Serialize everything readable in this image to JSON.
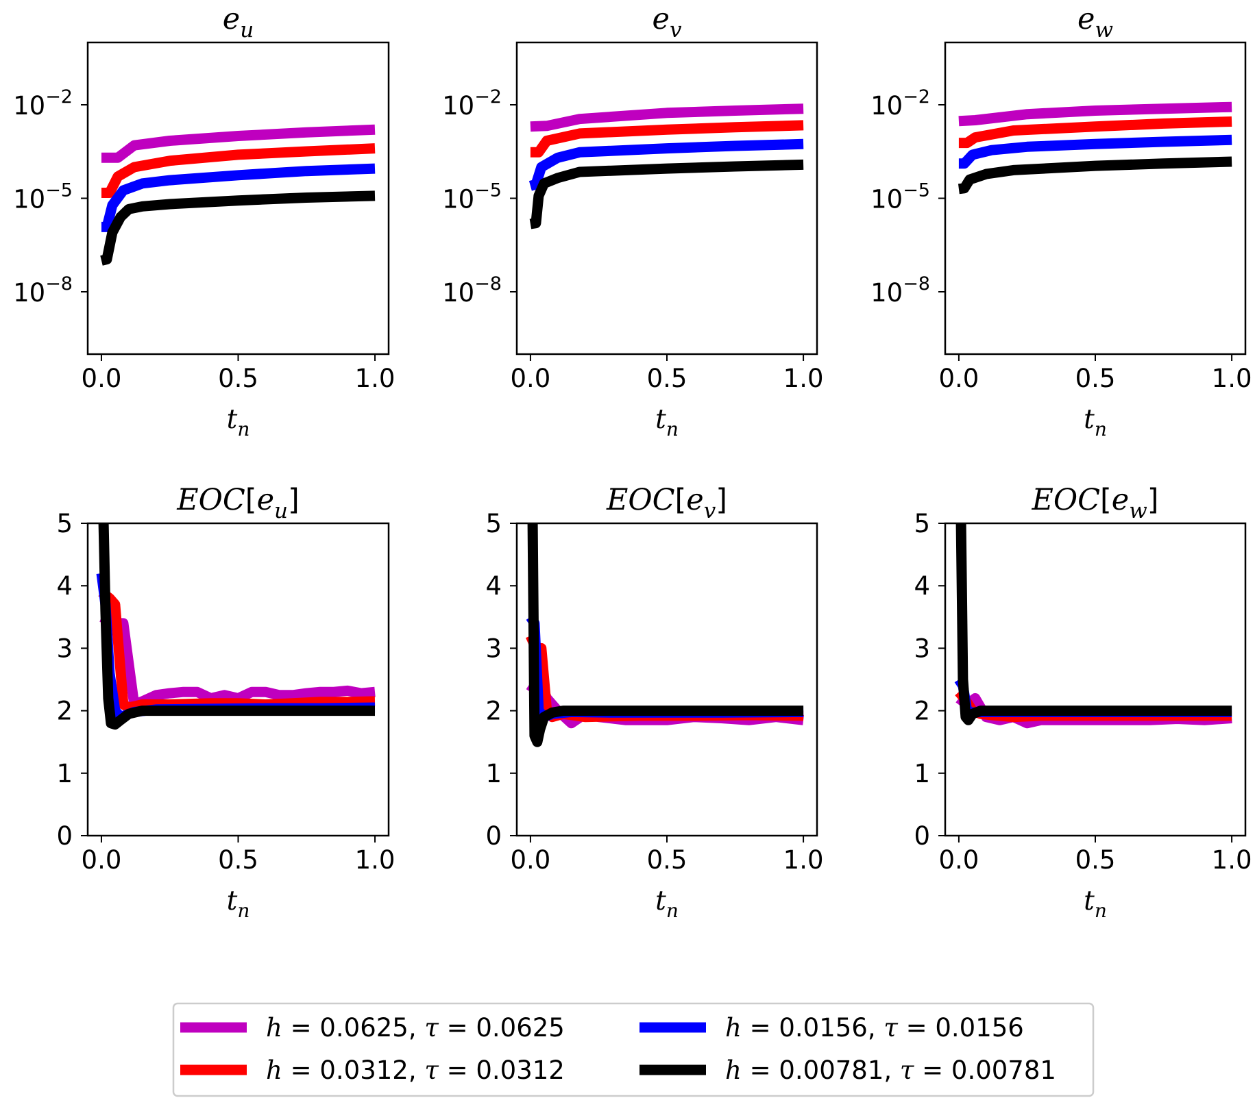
{
  "legend": {
    "entries": [
      {
        "label": "h = 0.0625, τ = 0.0625",
        "color": "#bf00bf"
      },
      {
        "label": "h = 0.0312, τ = 0.0312",
        "color": "#ff0000"
      },
      {
        "label": "h = 0.0156, τ = 0.0156",
        "color": "#0000ff"
      },
      {
        "label": "h = 0.00781, τ = 0.00781",
        "color": "#000000"
      }
    ]
  },
  "chart_data": [
    {
      "type": "line",
      "title": "e_u",
      "xlabel": "t_n",
      "ylabel": "",
      "yscale": "log",
      "xlim": [
        -0.05,
        1.05
      ],
      "ylim": [
        1e-10,
        1.0
      ],
      "xticks": [
        0.0,
        0.5,
        1.0
      ],
      "xtick_labels": [
        "0.0",
        "0.5",
        "1.0"
      ],
      "yticks": [
        1e-08,
        1e-05,
        0.01
      ],
      "ytick_labels": [
        "10",
        "10",
        "10"
      ],
      "ytick_exponents": [
        "−8",
        "−5",
        "−2"
      ],
      "series": [
        {
          "name": "h = 0.0625, τ = 0.0625",
          "x": [
            0,
            0.06,
            0.12,
            0.25,
            0.5,
            0.75,
            1.0
          ],
          "y": [
            0.0002,
            0.0002,
            0.0005,
            0.0007,
            0.001,
            0.0013,
            0.0016
          ]
        },
        {
          "name": "h = 0.0312, τ = 0.0312",
          "x": [
            0,
            0.03,
            0.06,
            0.12,
            0.25,
            0.5,
            0.75,
            1.0
          ],
          "y": [
            1.5e-05,
            1.5e-05,
            5e-05,
            0.0001,
            0.00016,
            0.00025,
            0.00032,
            0.0004
          ]
        },
        {
          "name": "h = 0.0156, τ = 0.0156",
          "x": [
            0,
            0.02,
            0.04,
            0.08,
            0.15,
            0.25,
            0.5,
            0.75,
            1.0
          ],
          "y": [
            1.2e-06,
            1.2e-06,
            6e-06,
            1.8e-05,
            3e-05,
            3.8e-05,
            5.5e-05,
            7.5e-05,
            9e-05
          ]
        },
        {
          "name": "h = 0.00781, τ = 0.00781",
          "x": [
            0,
            0.02,
            0.04,
            0.07,
            0.1,
            0.15,
            0.25,
            0.5,
            0.75,
            1.0
          ],
          "y": [
            1e-07,
            1.1e-07,
            8e-07,
            2.5e-06,
            4.5e-06,
            5.5e-06,
            6.5e-06,
            8.5e-06,
            1.05e-05,
            1.2e-05
          ]
        }
      ]
    },
    {
      "type": "line",
      "title": "e_v",
      "xlabel": "t_n",
      "ylabel": "",
      "yscale": "log",
      "xlim": [
        -0.05,
        1.05
      ],
      "ylim": [
        1e-10,
        1.0
      ],
      "xticks": [
        0.0,
        0.5,
        1.0
      ],
      "xtick_labels": [
        "0.0",
        "0.5",
        "1.0"
      ],
      "yticks": [
        1e-08,
        1e-05,
        0.01
      ],
      "ytick_labels": [
        "10",
        "10",
        "10"
      ],
      "ytick_exponents": [
        "−8",
        "−5",
        "−2"
      ],
      "series": [
        {
          "name": "h = 0.0625, τ = 0.0625",
          "x": [
            0,
            0.06,
            0.18,
            0.5,
            0.75,
            1.0
          ],
          "y": [
            0.002,
            0.0021,
            0.0035,
            0.0055,
            0.0065,
            0.0075
          ]
        },
        {
          "name": "h = 0.0312, τ = 0.0312",
          "x": [
            0,
            0.03,
            0.06,
            0.18,
            0.5,
            0.75,
            1.0
          ],
          "y": [
            0.0003,
            0.0003,
            0.0007,
            0.0012,
            0.0016,
            0.0019,
            0.0022
          ]
        },
        {
          "name": "h = 0.0156, τ = 0.0156",
          "x": [
            0,
            0.02,
            0.04,
            0.1,
            0.18,
            0.5,
            0.75,
            1.0
          ],
          "y": [
            2.5e-05,
            2.8e-05,
            0.0001,
            0.0002,
            0.0003,
            0.0004,
            0.00048,
            0.00055
          ]
        },
        {
          "name": "h = 0.00781, τ = 0.00781",
          "x": [
            0,
            0.02,
            0.03,
            0.05,
            0.1,
            0.18,
            0.5,
            0.75,
            1.0
          ],
          "y": [
            1.5e-06,
            1.6e-06,
            1.2e-05,
            3e-05,
            4.5e-05,
            7e-05,
            9e-05,
            0.000105,
            0.00012
          ]
        }
      ]
    },
    {
      "type": "line",
      "title": "e_w",
      "xlabel": "t_n",
      "ylabel": "",
      "yscale": "log",
      "xlim": [
        -0.05,
        1.05
      ],
      "ylim": [
        1e-10,
        1.0
      ],
      "xticks": [
        0.0,
        0.5,
        1.0
      ],
      "xtick_labels": [
        "0.0",
        "0.5",
        "1.0"
      ],
      "yticks": [
        1e-08,
        1e-05,
        0.01
      ],
      "ytick_labels": [
        "10",
        "10",
        "10"
      ],
      "ytick_exponents": [
        "−8",
        "−5",
        "−2"
      ],
      "series": [
        {
          "name": "h = 0.0625, τ = 0.0625",
          "x": [
            0,
            0.06,
            0.25,
            0.5,
            0.75,
            1.0
          ],
          "y": [
            0.003,
            0.0032,
            0.005,
            0.0065,
            0.0075,
            0.0085
          ]
        },
        {
          "name": "h = 0.0312, τ = 0.0312",
          "x": [
            0,
            0.03,
            0.06,
            0.2,
            0.5,
            0.75,
            1.0
          ],
          "y": [
            0.0006,
            0.0006,
            0.0009,
            0.0015,
            0.002,
            0.0025,
            0.0029
          ]
        },
        {
          "name": "h = 0.0156, τ = 0.0156",
          "x": [
            0,
            0.02,
            0.05,
            0.12,
            0.25,
            0.5,
            0.75,
            1.0
          ],
          "y": [
            0.00013,
            0.00013,
            0.00025,
            0.00035,
            0.00045,
            0.00055,
            0.00065,
            0.00075
          ]
        },
        {
          "name": "h = 0.00781, τ = 0.00781",
          "x": [
            0,
            0.02,
            0.04,
            0.1,
            0.2,
            0.5,
            0.75,
            1.0
          ],
          "y": [
            2e-05,
            2.1e-05,
            4e-05,
            6e-05,
            8e-05,
            0.00011,
            0.00013,
            0.00015
          ]
        }
      ]
    },
    {
      "type": "line",
      "title": "EOC[e_u]",
      "xlabel": "t_n",
      "ylabel": "",
      "yscale": "linear",
      "xlim": [
        -0.05,
        1.05
      ],
      "ylim": [
        0,
        5
      ],
      "xticks": [
        0.0,
        0.5,
        1.0
      ],
      "xtick_labels": [
        "0.0",
        "0.5",
        "1.0"
      ],
      "yticks": [
        0,
        1,
        2,
        3,
        4,
        5
      ],
      "ytick_labels": [
        "0",
        "1",
        "2",
        "3",
        "4",
        "5"
      ],
      "series": [
        {
          "name": "h = 0.0625, τ = 0.0625",
          "x": [
            0,
            0.03,
            0.06,
            0.08,
            0.12,
            0.15,
            0.2,
            0.25,
            0.3,
            0.35,
            0.4,
            0.45,
            0.5,
            0.55,
            0.6,
            0.65,
            0.7,
            0.75,
            0.8,
            0.85,
            0.9,
            0.95,
            1.0
          ],
          "y": [
            3.5,
            3.45,
            3.4,
            3.4,
            2.1,
            2.15,
            2.25,
            2.28,
            2.3,
            2.3,
            2.2,
            2.25,
            2.2,
            2.3,
            2.3,
            2.25,
            2.25,
            2.28,
            2.3,
            2.3,
            2.32,
            2.28,
            2.3
          ]
        },
        {
          "name": "h = 0.0312, τ = 0.0312",
          "x": [
            0,
            0.03,
            0.05,
            0.08,
            0.1,
            0.15,
            0.25,
            0.4,
            0.5,
            0.6,
            0.7,
            0.8,
            0.9,
            1.0
          ],
          "y": [
            3.9,
            3.8,
            3.7,
            2.1,
            2.05,
            2.1,
            2.1,
            2.12,
            2.12,
            2.1,
            2.12,
            2.14,
            2.14,
            2.15
          ]
        },
        {
          "name": "h = 0.0156, τ = 0.0156",
          "x": [
            0,
            0.015,
            0.03,
            0.05,
            0.07,
            0.12,
            0.2,
            0.4,
            0.6,
            0.8,
            1.0
          ],
          "y": [
            4.2,
            3.7,
            2.6,
            2.0,
            1.9,
            1.98,
            2.02,
            2.03,
            2.04,
            2.04,
            2.05
          ]
        },
        {
          "name": "h = 0.00781, τ = 0.00781",
          "x": [
            0,
            0.008,
            0.015,
            0.025,
            0.035,
            0.05,
            0.07,
            0.1,
            0.15,
            0.2,
            0.4,
            0.6,
            0.8,
            1.0
          ],
          "y": [
            5.0,
            5.0,
            3.6,
            2.2,
            1.8,
            1.78,
            1.85,
            1.95,
            2.0,
            2.0,
            2.0,
            2.0,
            2.0,
            2.0
          ]
        }
      ]
    },
    {
      "type": "line",
      "title": "EOC[e_v]",
      "xlabel": "t_n",
      "ylabel": "",
      "yscale": "linear",
      "xlim": [
        -0.05,
        1.05
      ],
      "ylim": [
        0,
        5
      ],
      "xticks": [
        0.0,
        0.5,
        1.0
      ],
      "xtick_labels": [
        "0.0",
        "0.5",
        "1.0"
      ],
      "yticks": [
        0,
        1,
        2,
        3,
        4,
        5
      ],
      "ytick_labels": [
        "0",
        "1",
        "2",
        "3",
        "4",
        "5"
      ],
      "series": [
        {
          "name": "h = 0.0625, τ = 0.0625",
          "x": [
            0,
            0.03,
            0.06,
            0.1,
            0.15,
            0.2,
            0.25,
            0.35,
            0.5,
            0.6,
            0.7,
            0.8,
            0.9,
            1.0
          ],
          "y": [
            2.3,
            2.5,
            2.2,
            2.0,
            1.8,
            1.95,
            1.9,
            1.85,
            1.85,
            1.9,
            1.88,
            1.85,
            1.9,
            1.85
          ]
        },
        {
          "name": "h = 0.0312, τ = 0.0312",
          "x": [
            0,
            0.02,
            0.04,
            0.06,
            0.08,
            0.12,
            0.2,
            0.4,
            0.6,
            0.8,
            1.0
          ],
          "y": [
            3.2,
            3.0,
            3.0,
            2.0,
            1.9,
            1.95,
            1.9,
            1.92,
            1.92,
            1.93,
            1.92
          ]
        },
        {
          "name": "h = 0.0156, τ = 0.0156",
          "x": [
            0,
            0.015,
            0.03,
            0.05,
            0.08,
            0.15,
            0.3,
            0.5,
            0.7,
            1.0
          ],
          "y": [
            3.5,
            3.4,
            2.0,
            1.9,
            1.95,
            1.98,
            1.97,
            1.97,
            1.97,
            1.98
          ]
        },
        {
          "name": "h = 0.00781, τ = 0.00781",
          "x": [
            0,
            0.008,
            0.015,
            0.025,
            0.035,
            0.05,
            0.08,
            0.12,
            0.2,
            0.4,
            0.6,
            0.8,
            1.0
          ],
          "y": [
            5.0,
            5.0,
            1.6,
            1.5,
            1.7,
            1.9,
            1.97,
            2.0,
            2.0,
            2.0,
            2.0,
            2.0,
            2.0
          ]
        }
      ]
    },
    {
      "type": "line",
      "title": "EOC[e_w]",
      "xlabel": "t_n",
      "ylabel": "",
      "yscale": "linear",
      "xlim": [
        -0.05,
        1.05
      ],
      "ylim": [
        0,
        5
      ],
      "xticks": [
        0.0,
        0.5,
        1.0
      ],
      "xtick_labels": [
        "0.0",
        "0.5",
        "1.0"
      ],
      "yticks": [
        0,
        1,
        2,
        3,
        4,
        5
      ],
      "ytick_labels": [
        "0",
        "1",
        "2",
        "3",
        "4",
        "5"
      ],
      "series": [
        {
          "name": "h = 0.0625, τ = 0.0625",
          "x": [
            0,
            0.03,
            0.06,
            0.1,
            0.15,
            0.2,
            0.25,
            0.3,
            0.4,
            0.5,
            0.6,
            0.7,
            0.8,
            0.9,
            1.0
          ],
          "y": [
            2.2,
            2.1,
            2.2,
            1.9,
            1.85,
            1.9,
            1.8,
            1.85,
            1.85,
            1.85,
            1.85,
            1.85,
            1.87,
            1.85,
            1.88
          ]
        },
        {
          "name": "h = 0.0312, τ = 0.0312",
          "x": [
            0,
            0.02,
            0.05,
            0.08,
            0.12,
            0.2,
            0.3,
            0.5,
            0.7,
            1.0
          ],
          "y": [
            2.3,
            2.2,
            2.0,
            1.95,
            1.93,
            1.9,
            1.92,
            1.92,
            1.92,
            1.92
          ]
        },
        {
          "name": "h = 0.0156, τ = 0.0156",
          "x": [
            0,
            0.015,
            0.03,
            0.05,
            0.08,
            0.15,
            0.3,
            0.5,
            0.7,
            1.0
          ],
          "y": [
            2.5,
            2.4,
            2.0,
            1.97,
            1.98,
            1.98,
            1.98,
            1.98,
            1.98,
            1.98
          ]
        },
        {
          "name": "h = 0.00781, τ = 0.00781",
          "x": [
            0,
            0.008,
            0.015,
            0.025,
            0.035,
            0.05,
            0.08,
            0.15,
            0.3,
            0.5,
            0.7,
            1.0
          ],
          "y": [
            5.0,
            5.0,
            2.5,
            1.9,
            1.85,
            1.95,
            2.0,
            2.0,
            2.0,
            2.0,
            2.0,
            2.0
          ]
        }
      ]
    }
  ]
}
